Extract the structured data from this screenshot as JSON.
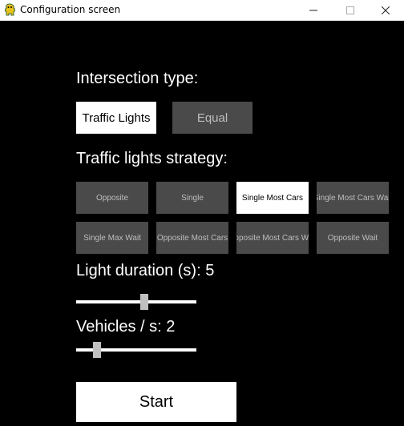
{
  "window": {
    "title": "Configuration screen",
    "icon": "pygame-snake-icon",
    "controls": {
      "minimize": "–",
      "maximize": "☐",
      "close": "✕"
    }
  },
  "intersection": {
    "label": "Intersection type:",
    "options": [
      {
        "label": "Traffic Lights",
        "selected": true
      },
      {
        "label": "Equal",
        "selected": false
      }
    ]
  },
  "strategy": {
    "label": "Traffic lights strategy:",
    "options": [
      {
        "label": "Opposite",
        "selected": false
      },
      {
        "label": "Single",
        "selected": false
      },
      {
        "label": "Single Most Cars",
        "selected": true
      },
      {
        "label": "Single Most Cars Wait",
        "selected": false
      },
      {
        "label": "Single Max Wait",
        "selected": false
      },
      {
        "label": "Opposite Most Cars",
        "selected": false
      },
      {
        "label": "Opposite Most Cars Wait",
        "selected": false
      },
      {
        "label": "Opposite Wait",
        "selected": false
      }
    ]
  },
  "light_duration": {
    "label": "Light duration (s): 5",
    "level": 0.57
  },
  "vehicles": {
    "label": "Vehicles / s: 2",
    "level": 0.17
  },
  "start_button": {
    "label": "Start"
  },
  "colors": {
    "background": "#000000",
    "selected_bg": "#ffffff",
    "unselected_bg": "#4a4a4a",
    "unselected_text": "#bdbdbd",
    "slider_handle": "#c0c0c0"
  }
}
